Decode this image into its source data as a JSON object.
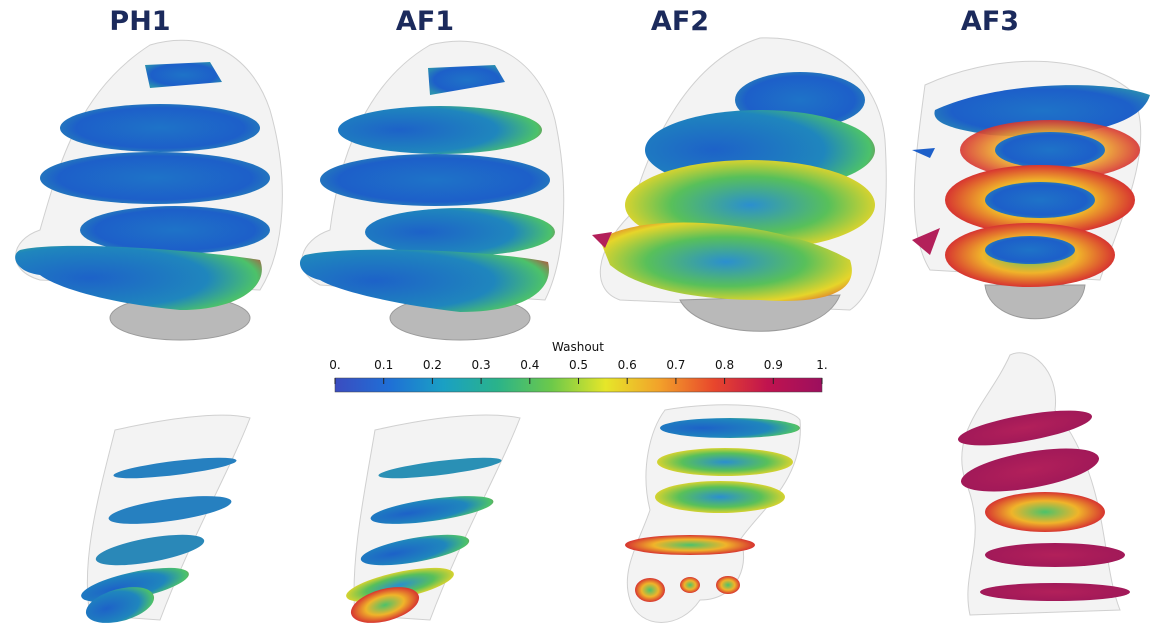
{
  "panels": [
    {
      "title": "PH1"
    },
    {
      "title": "AF1"
    },
    {
      "title": "AF2"
    },
    {
      "title": "AF3"
    }
  ],
  "colorbar": {
    "title": "Washout",
    "range": [
      0,
      1
    ],
    "ticks": [
      {
        "value": 0,
        "label": "0."
      },
      0.1,
      0.2,
      0.3,
      0.4,
      0.5,
      0.6,
      0.7,
      0.8,
      0.9,
      {
        "value": 1,
        "label": "1."
      }
    ],
    "colors": [
      "#3b4cc0",
      "#1f6fd6",
      "#1aa0c4",
      "#2ab38a",
      "#6cc94a",
      "#e6e629",
      "#f2a12a",
      "#e8472c",
      "#c0134f",
      "#9c0f5e"
    ]
  }
}
